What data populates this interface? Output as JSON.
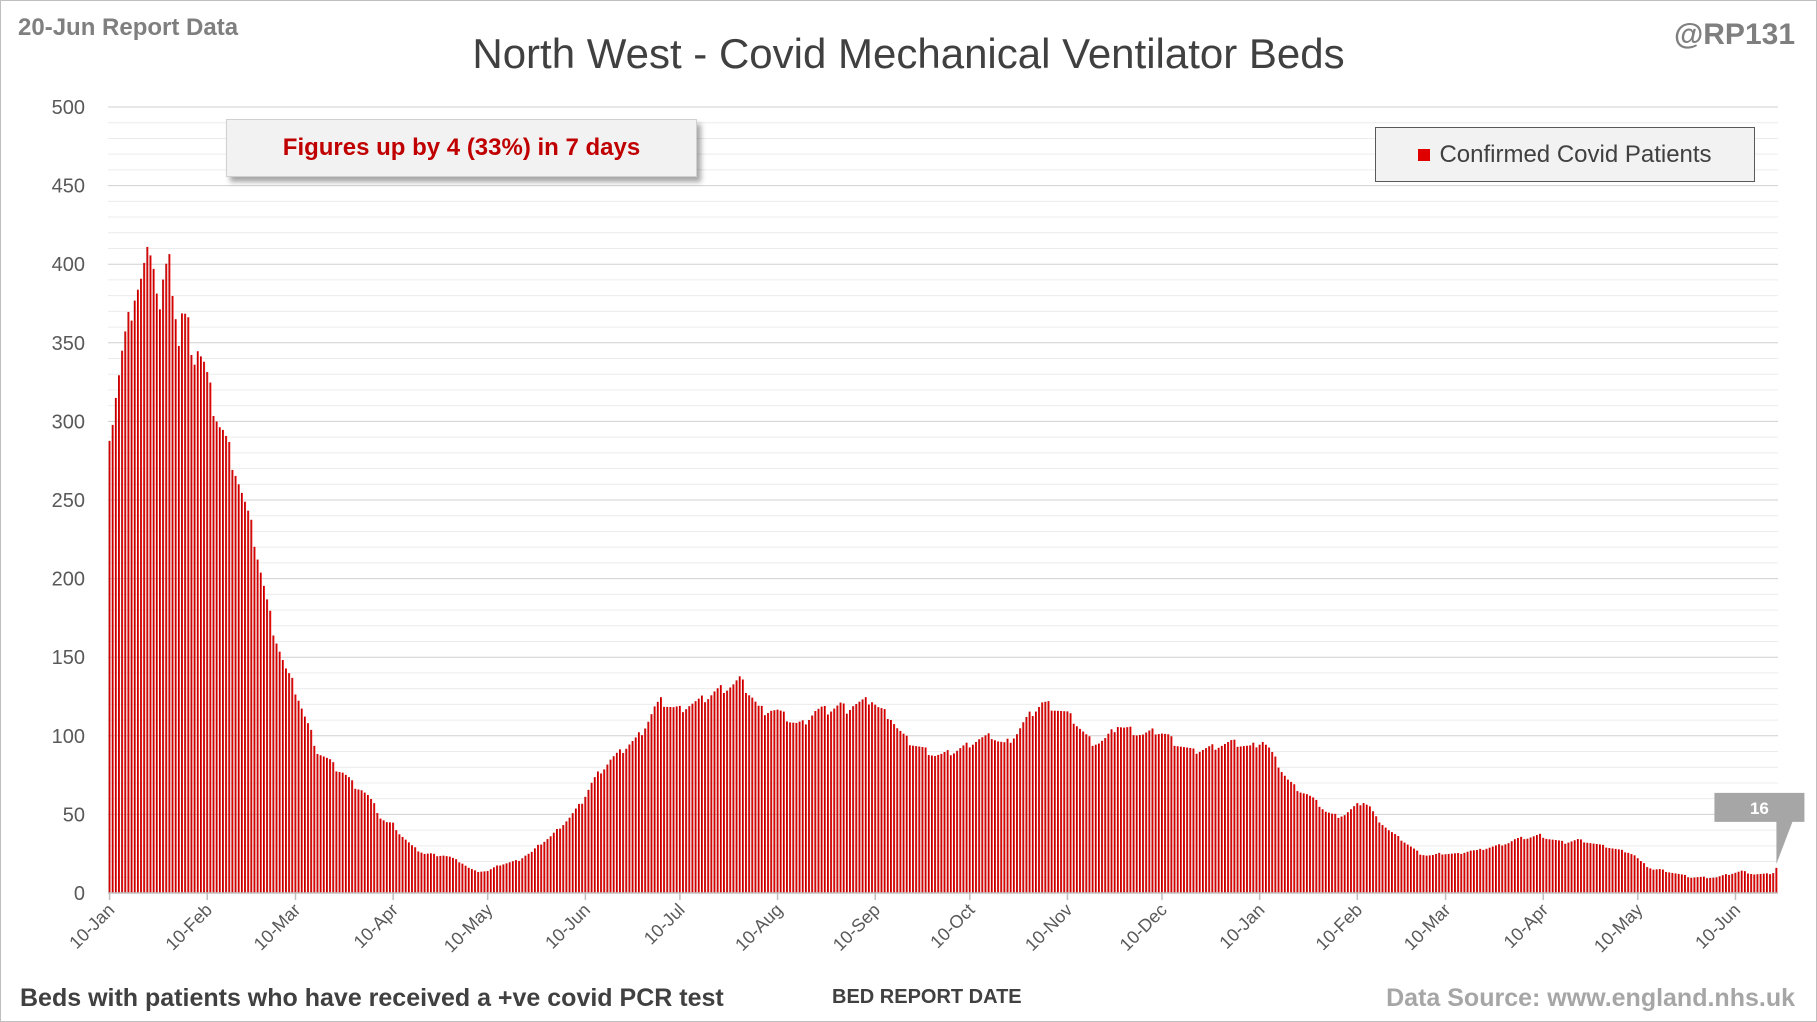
{
  "header": {
    "report_date": "20-Jun Report Data",
    "handle": "@RP131",
    "title": "North West - Covid Mechanical Ventilator Beds"
  },
  "annotation": {
    "headline": "Figures up by 4 (33%) in 7 days",
    "last_value_label": "16"
  },
  "legend": {
    "label": "Confirmed Covid Patients"
  },
  "footer": {
    "note": "Beds with patients who have received a +ve covid PCR test",
    "x_axis_title": "BED REPORT DATE",
    "source": "Data Source: www.england.nhs.uk"
  },
  "colors": {
    "bar_dark": "#8b0000",
    "bar_light": "#ff1a1a",
    "headline_text": "#c00000",
    "grid": "#d9d9d9",
    "label_box": "#a6a6a6"
  },
  "chart_data": {
    "type": "bar",
    "title": "North West - Covid Mechanical Ventilator Beds",
    "xlabel": "BED REPORT DATE",
    "ylabel": "",
    "ylim": [
      0,
      500
    ],
    "yticks": [
      0,
      50,
      100,
      150,
      200,
      250,
      300,
      350,
      400,
      450,
      500
    ],
    "grid": true,
    "legend_position": "top-right",
    "series": [
      {
        "name": "Confirmed Covid Patients",
        "color": "#e00000"
      }
    ],
    "x_tick_labels": [
      "10-Jan",
      "10-Feb",
      "10-Mar",
      "10-Apr",
      "10-May",
      "10-Jun",
      "10-Jul",
      "10-Aug",
      "10-Sep",
      "10-Oct",
      "10-Nov",
      "10-Dec",
      "10-Jan",
      "10-Feb",
      "10-Mar",
      "10-Apr",
      "10-May",
      "10-Jun"
    ],
    "x_tick_days": [
      0,
      31,
      59,
      90,
      120,
      151,
      181,
      212,
      243,
      273,
      304,
      334,
      365,
      396,
      424,
      455,
      485,
      516
    ],
    "start_label": "10-Jan",
    "end_label": "20-Jun",
    "last_value": 16,
    "anchors": [
      [
        0,
        295
      ],
      [
        1,
        303
      ],
      [
        2,
        318
      ],
      [
        3,
        330
      ],
      [
        4,
        343
      ],
      [
        6,
        362
      ],
      [
        8,
        382
      ],
      [
        10,
        390
      ],
      [
        12,
        404
      ],
      [
        13,
        416
      ],
      [
        14,
        404
      ],
      [
        15,
        385
      ],
      [
        16,
        372
      ],
      [
        17,
        388
      ],
      [
        18,
        395
      ],
      [
        19,
        398
      ],
      [
        20,
        388
      ],
      [
        21,
        370
      ],
      [
        22,
        350
      ],
      [
        23,
        368
      ],
      [
        24,
        365
      ],
      [
        25,
        360
      ],
      [
        27,
        342
      ],
      [
        28,
        348
      ],
      [
        30,
        336
      ],
      [
        32,
        318
      ],
      [
        33,
        310
      ],
      [
        35,
        298
      ],
      [
        36,
        294
      ],
      [
        38,
        282
      ],
      [
        40,
        270
      ],
      [
        42,
        255
      ],
      [
        44,
        240
      ],
      [
        46,
        225
      ],
      [
        48,
        205
      ],
      [
        50,
        185
      ],
      [
        52,
        168
      ],
      [
        54,
        155
      ],
      [
        56,
        142
      ],
      [
        58,
        134
      ],
      [
        60,
        124
      ],
      [
        62,
        112
      ],
      [
        64,
        102
      ],
      [
        66,
        90
      ],
      [
        68,
        87
      ],
      [
        70,
        84
      ],
      [
        72,
        79
      ],
      [
        74,
        77
      ],
      [
        76,
        73
      ],
      [
        78,
        68
      ],
      [
        80,
        66
      ],
      [
        82,
        62
      ],
      [
        84,
        56
      ],
      [
        86,
        48
      ],
      [
        88,
        45
      ],
      [
        90,
        44
      ],
      [
        92,
        38
      ],
      [
        94,
        34
      ],
      [
        96,
        30
      ],
      [
        98,
        27
      ],
      [
        100,
        25
      ],
      [
        102,
        25
      ],
      [
        104,
        24
      ],
      [
        106,
        24
      ],
      [
        108,
        23
      ],
      [
        110,
        21
      ],
      [
        112,
        19
      ],
      [
        114,
        16
      ],
      [
        116,
        14
      ],
      [
        118,
        14
      ],
      [
        120,
        14
      ],
      [
        122,
        16
      ],
      [
        124,
        18
      ],
      [
        126,
        19
      ],
      [
        128,
        20
      ],
      [
        130,
        21
      ],
      [
        132,
        24
      ],
      [
        134,
        26
      ],
      [
        136,
        30
      ],
      [
        138,
        33
      ],
      [
        140,
        36
      ],
      [
        142,
        40
      ],
      [
        144,
        44
      ],
      [
        146,
        48
      ],
      [
        148,
        53
      ],
      [
        150,
        58
      ],
      [
        151,
        62
      ],
      [
        153,
        70
      ],
      [
        155,
        76
      ],
      [
        157,
        80
      ],
      [
        159,
        85
      ],
      [
        161,
        88
      ],
      [
        163,
        91
      ],
      [
        165,
        95
      ],
      [
        167,
        98
      ],
      [
        169,
        103
      ],
      [
        171,
        110
      ],
      [
        173,
        118
      ],
      [
        175,
        122
      ],
      [
        177,
        120
      ],
      [
        179,
        118
      ],
      [
        181,
        117
      ],
      [
        184,
        120
      ],
      [
        187,
        122
      ],
      [
        190,
        125
      ],
      [
        192,
        128
      ],
      [
        194,
        130
      ],
      [
        196,
        131
      ],
      [
        198,
        133
      ],
      [
        200,
        136
      ],
      [
        202,
        130
      ],
      [
        204,
        125
      ],
      [
        206,
        118
      ],
      [
        208,
        116
      ],
      [
        210,
        117
      ],
      [
        212,
        116
      ],
      [
        214,
        113
      ],
      [
        216,
        110
      ],
      [
        218,
        108
      ],
      [
        220,
        108
      ],
      [
        222,
        112
      ],
      [
        224,
        116
      ],
      [
        226,
        117
      ],
      [
        228,
        116
      ],
      [
        230,
        118
      ],
      [
        232,
        120
      ],
      [
        234,
        117
      ],
      [
        236,
        120
      ],
      [
        238,
        121
      ],
      [
        240,
        122
      ],
      [
        242,
        123
      ],
      [
        244,
        118
      ],
      [
        246,
        115
      ],
      [
        248,
        112
      ],
      [
        250,
        105
      ],
      [
        252,
        100
      ],
      [
        254,
        96
      ],
      [
        256,
        94
      ],
      [
        258,
        92
      ],
      [
        260,
        90
      ],
      [
        262,
        88
      ],
      [
        264,
        88
      ],
      [
        266,
        89
      ],
      [
        268,
        90
      ],
      [
        270,
        92
      ],
      [
        272,
        94
      ],
      [
        274,
        96
      ],
      [
        276,
        98
      ],
      [
        278,
        99
      ],
      [
        280,
        100
      ],
      [
        282,
        97
      ],
      [
        284,
        95
      ],
      [
        286,
        98
      ],
      [
        288,
        102
      ],
      [
        290,
        108
      ],
      [
        292,
        113
      ],
      [
        294,
        117
      ],
      [
        296,
        121
      ],
      [
        298,
        120
      ],
      [
        300,
        118
      ],
      [
        302,
        116
      ],
      [
        304,
        114
      ],
      [
        306,
        110
      ],
      [
        308,
        105
      ],
      [
        310,
        100
      ],
      [
        312,
        96
      ],
      [
        314,
        96
      ],
      [
        316,
        98
      ],
      [
        318,
        102
      ],
      [
        320,
        107
      ],
      [
        322,
        105
      ],
      [
        324,
        104
      ],
      [
        326,
        102
      ],
      [
        328,
        101
      ],
      [
        330,
        102
      ],
      [
        332,
        103
      ],
      [
        334,
        102
      ],
      [
        336,
        100
      ],
      [
        338,
        96
      ],
      [
        340,
        94
      ],
      [
        342,
        92
      ],
      [
        344,
        90
      ],
      [
        346,
        91
      ],
      [
        348,
        92
      ],
      [
        350,
        93
      ],
      [
        352,
        94
      ],
      [
        354,
        95
      ],
      [
        356,
        96
      ],
      [
        358,
        95
      ],
      [
        360,
        94
      ],
      [
        362,
        93
      ],
      [
        364,
        95
      ],
      [
        366,
        97
      ],
      [
        368,
        92
      ],
      [
        370,
        85
      ],
      [
        372,
        78
      ],
      [
        374,
        72
      ],
      [
        376,
        68
      ],
      [
        378,
        65
      ],
      [
        380,
        63
      ],
      [
        382,
        60
      ],
      [
        384,
        56
      ],
      [
        386,
        52
      ],
      [
        388,
        50
      ],
      [
        390,
        49
      ],
      [
        392,
        50
      ],
      [
        394,
        53
      ],
      [
        396,
        56
      ],
      [
        398,
        58
      ],
      [
        400,
        55
      ],
      [
        402,
        48
      ],
      [
        404,
        44
      ],
      [
        406,
        40
      ],
      [
        408,
        37
      ],
      [
        410,
        34
      ],
      [
        412,
        31
      ],
      [
        414,
        28
      ],
      [
        416,
        25
      ],
      [
        418,
        24
      ],
      [
        420,
        24
      ],
      [
        422,
        25
      ],
      [
        424,
        25
      ],
      [
        426,
        25
      ],
      [
        428,
        25
      ],
      [
        430,
        26
      ],
      [
        432,
        27
      ],
      [
        434,
        27
      ],
      [
        436,
        28
      ],
      [
        438,
        29
      ],
      [
        440,
        30
      ],
      [
        442,
        31
      ],
      [
        444,
        32
      ],
      [
        446,
        34
      ],
      [
        448,
        35
      ],
      [
        450,
        35
      ],
      [
        452,
        36
      ],
      [
        454,
        37
      ],
      [
        456,
        35
      ],
      [
        458,
        34
      ],
      [
        460,
        33
      ],
      [
        462,
        32
      ],
      [
        464,
        33
      ],
      [
        466,
        34
      ],
      [
        468,
        33
      ],
      [
        470,
        32
      ],
      [
        472,
        31
      ],
      [
        474,
        30
      ],
      [
        476,
        29
      ],
      [
        478,
        28
      ],
      [
        480,
        27
      ],
      [
        482,
        26
      ],
      [
        484,
        24
      ],
      [
        486,
        20
      ],
      [
        488,
        17
      ],
      [
        490,
        15
      ],
      [
        492,
        15
      ],
      [
        494,
        14
      ],
      [
        496,
        13
      ],
      [
        498,
        12
      ],
      [
        500,
        11
      ],
      [
        502,
        10
      ],
      [
        504,
        10
      ],
      [
        506,
        10
      ],
      [
        508,
        10
      ],
      [
        510,
        10
      ],
      [
        512,
        11
      ],
      [
        514,
        12
      ],
      [
        516,
        13
      ],
      [
        518,
        14
      ],
      [
        520,
        13
      ],
      [
        522,
        12
      ],
      [
        524,
        12
      ],
      [
        526,
        12
      ],
      [
        528,
        13
      ],
      [
        529,
        16
      ]
    ]
  }
}
